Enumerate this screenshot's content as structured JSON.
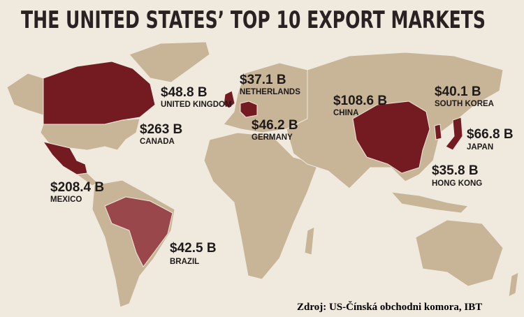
{
  "title": "THE UNITED STATES’ TOP 10 EXPORT MARKETS",
  "markets": [
    {
      "value": "$48.8 B",
      "country": "UNITED KINGDOM"
    },
    {
      "value": "$37.1 B",
      "country": "NETHERLANDS"
    },
    {
      "value": "$108.6 B",
      "country": "CHINA"
    },
    {
      "value": "$40.1 B",
      "country": "SOUTH KOREA"
    },
    {
      "value": "$263 B",
      "country": "CANADA"
    },
    {
      "value": "$46.2 B",
      "country": "GERMANY"
    },
    {
      "value": "$66.8 B",
      "country": "JAPAN"
    },
    {
      "value": "$35.8 B",
      "country": "HONG KONG"
    },
    {
      "value": "$208.4 B",
      "country": "MEXICO"
    },
    {
      "value": "$42.5 B",
      "country": "BRAZIL"
    }
  ],
  "source": "Zdroj: US-Čínská obchodni komora, IBT"
}
